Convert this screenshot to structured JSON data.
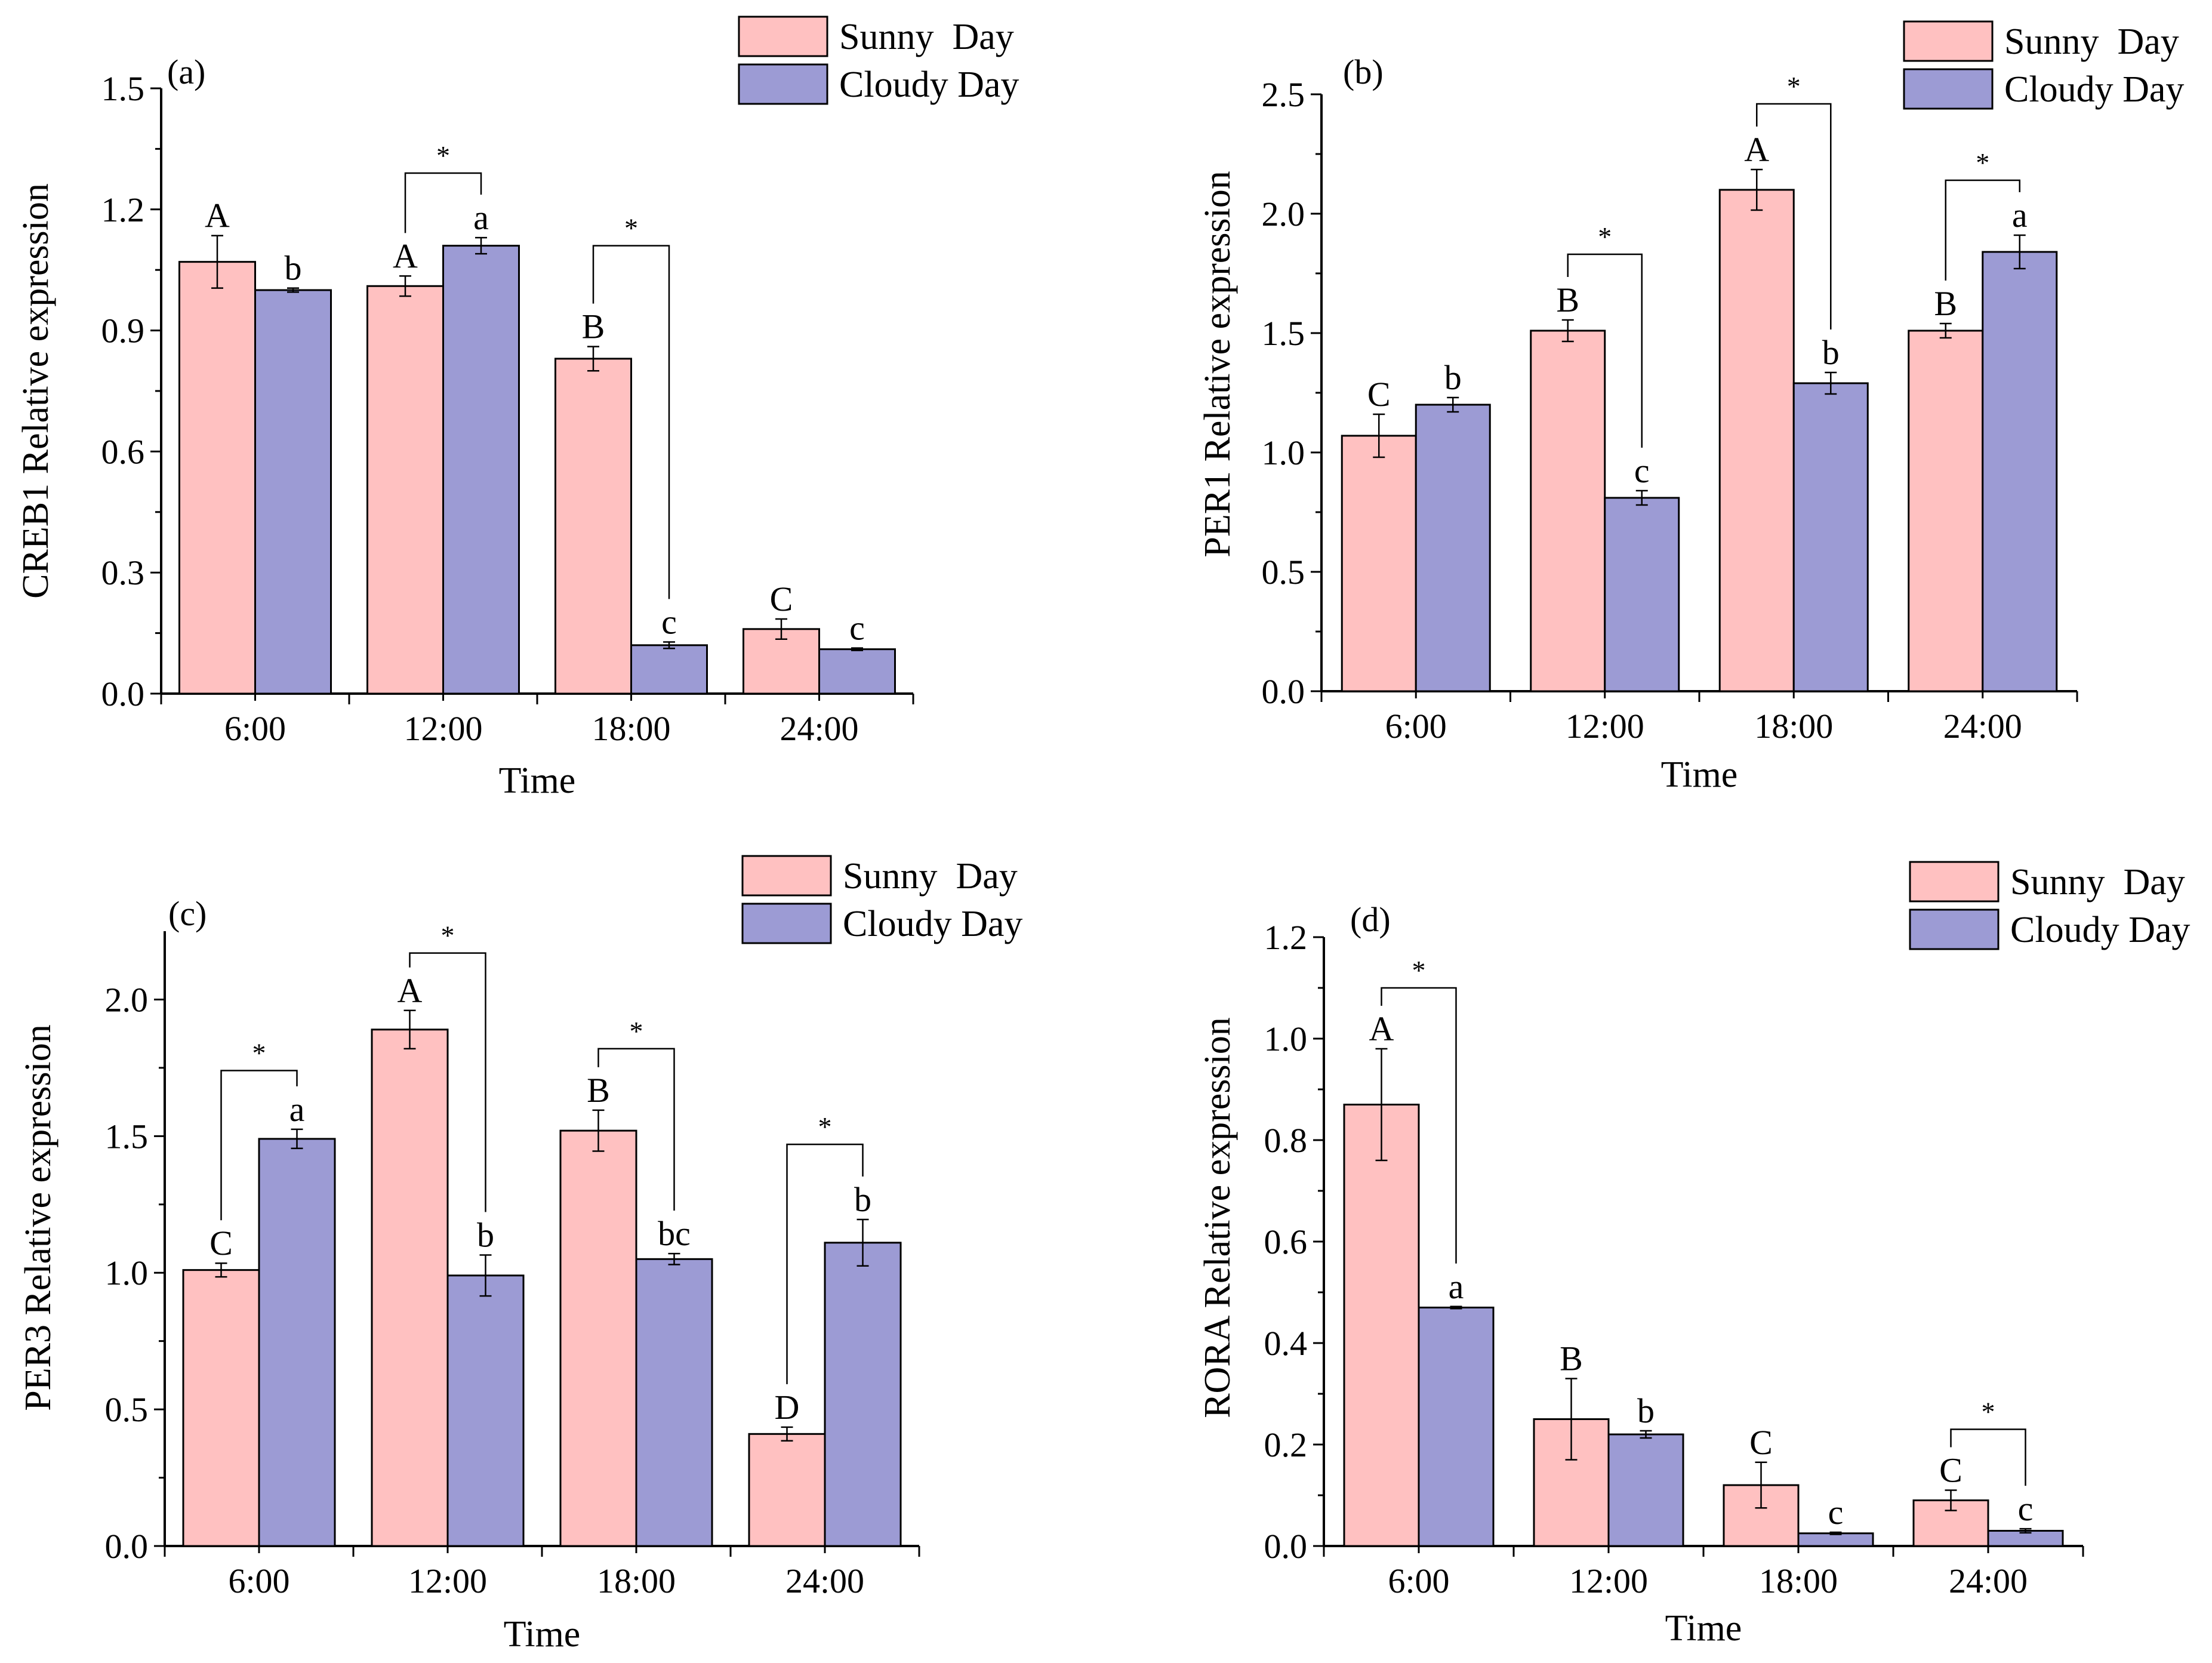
{
  "colors": {
    "sunny": "#FFC1C1",
    "cloudy": "#9C9BD4",
    "stroke": "#000000"
  },
  "legend": {
    "sunny_label": "Sunny  Day",
    "cloudy_label": "Cloudy Day"
  },
  "chart_data": [
    {
      "type": "bar",
      "id": "a",
      "panel_label": "(a)",
      "title": "",
      "xlabel": "Time",
      "ylabel": "CREB1 Relative expression",
      "categories": [
        "6:00",
        "12:00",
        "18:00",
        "24:00"
      ],
      "ylim": [
        0,
        1.5
      ],
      "yticks": [
        "0.0",
        "0.3",
        "0.6",
        "0.9",
        "1.2",
        "1.5"
      ],
      "legend_position": "top-right",
      "series": [
        {
          "name": "Sunny  Day",
          "values": [
            1.07,
            1.01,
            0.83,
            0.16
          ],
          "errors": [
            0.065,
            0.025,
            0.03,
            0.025
          ],
          "letters": [
            "A",
            "A",
            "B",
            "C"
          ]
        },
        {
          "name": "Cloudy Day",
          "values": [
            1.0,
            1.11,
            0.12,
            0.11
          ],
          "errors": [
            0.005,
            0.02,
            0.008,
            0.003
          ],
          "letters": [
            "b",
            "a",
            "c",
            "c"
          ]
        }
      ],
      "significance": [
        {
          "category": "12:00",
          "label": "*",
          "top": 1.29
        },
        {
          "category": "18:00",
          "label": "*",
          "top": 1.11
        }
      ]
    },
    {
      "type": "bar",
      "id": "b",
      "panel_label": "(b)",
      "title": "",
      "xlabel": "Time",
      "ylabel": "PER1 Relative expression",
      "categories": [
        "6:00",
        "12:00",
        "18:00",
        "24:00"
      ],
      "ylim": [
        0,
        2.5
      ],
      "yticks": [
        "0.0",
        "0.5",
        "1.0",
        "1.5",
        "2.0",
        "2.5"
      ],
      "legend_position": "top-right",
      "series": [
        {
          "name": "Sunny  Day",
          "values": [
            1.07,
            1.51,
            2.1,
            1.51
          ],
          "errors": [
            0.09,
            0.045,
            0.085,
            0.03
          ],
          "letters": [
            "C",
            "B",
            "A",
            "B"
          ]
        },
        {
          "name": "Cloudy Day",
          "values": [
            1.2,
            0.81,
            1.29,
            1.84
          ],
          "errors": [
            0.03,
            0.03,
            0.045,
            0.07
          ],
          "letters": [
            "b",
            "c",
            "b",
            "a"
          ]
        }
      ],
      "significance": [
        {
          "category": "12:00",
          "label": "*",
          "top": 1.83
        },
        {
          "category": "18:00",
          "label": "*",
          "top": 2.46
        },
        {
          "category": "24:00",
          "label": "*",
          "top": 2.14
        }
      ]
    },
    {
      "type": "bar",
      "id": "c",
      "panel_label": "(c)",
      "title": "",
      "xlabel": "Time",
      "ylabel": "PER3 Relative expression",
      "categories": [
        "6:00",
        "12:00",
        "18:00",
        "24:00"
      ],
      "ylim": [
        0,
        2.25
      ],
      "yticks": [
        "0.0",
        "0.5",
        "1.0",
        "1.5",
        "2.0"
      ],
      "legend_position": "top-right",
      "series": [
        {
          "name": "Sunny  Day",
          "values": [
            1.01,
            1.89,
            1.52,
            0.41
          ],
          "errors": [
            0.025,
            0.07,
            0.075,
            0.025
          ],
          "letters": [
            "C",
            "A",
            "B",
            "D"
          ]
        },
        {
          "name": "Cloudy Day",
          "values": [
            1.49,
            0.99,
            1.05,
            1.11
          ],
          "errors": [
            0.035,
            0.075,
            0.02,
            0.085
          ],
          "letters": [
            "a",
            "b",
            "bc",
            "b"
          ]
        }
      ],
      "significance": [
        {
          "category": "6:00",
          "label": "*",
          "top": 1.74
        },
        {
          "category": "12:00",
          "label": "*",
          "top": 2.17
        },
        {
          "category": "18:00",
          "label": "*",
          "top": 1.82
        },
        {
          "category": "24:00",
          "label": "*",
          "top": 1.47
        }
      ]
    },
    {
      "type": "bar",
      "id": "d",
      "panel_label": "(d)",
      "title": "",
      "xlabel": "Time",
      "ylabel": "RORA Relative expression",
      "categories": [
        "6:00",
        "12:00",
        "18:00",
        "24:00"
      ],
      "ylim": [
        0,
        1.2
      ],
      "yticks": [
        "0.0",
        "0.2",
        "0.4",
        "0.6",
        "0.8",
        "1.0",
        "1.2"
      ],
      "legend_position": "top-right",
      "series": [
        {
          "name": "Sunny  Day",
          "values": [
            0.87,
            0.25,
            0.12,
            0.09
          ],
          "errors": [
            0.11,
            0.08,
            0.045,
            0.02
          ],
          "letters": [
            "A",
            "B",
            "C",
            "C"
          ]
        },
        {
          "name": "Cloudy Day",
          "values": [
            0.47,
            0.22,
            0.025,
            0.03
          ],
          "errors": [
            0.002,
            0.007,
            0.002,
            0.004
          ],
          "letters": [
            "a",
            "b",
            "c",
            "c"
          ]
        }
      ],
      "significance": [
        {
          "category": "6:00",
          "label": "*",
          "top": 1.1
        },
        {
          "category": "24:00",
          "label": "*",
          "top": 0.23
        }
      ]
    }
  ]
}
